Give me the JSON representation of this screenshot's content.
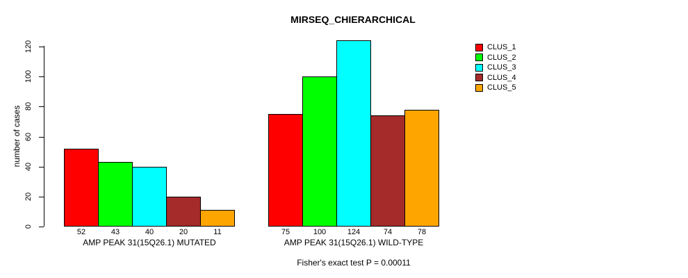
{
  "chart_data": {
    "type": "bar",
    "title": "MIRSEQ_CHIERARCHICAL",
    "ylabel": "number of cases",
    "ylim": [
      0,
      120
    ],
    "yticks": [
      0,
      20,
      40,
      60,
      80,
      100,
      120
    ],
    "grid": false,
    "legend_position": "right",
    "categories": [
      "AMP PEAK 31(15Q26.1) MUTATED",
      "AMP PEAK 31(15Q26.1) WILD-TYPE"
    ],
    "series": [
      {
        "name": "CLUS_1",
        "color": "#FF0000",
        "values": [
          52,
          75
        ]
      },
      {
        "name": "CLUS_2",
        "color": "#00FF00",
        "values": [
          43,
          100
        ]
      },
      {
        "name": "CLUS_3",
        "color": "#00FFFF",
        "values": [
          40,
          124
        ]
      },
      {
        "name": "CLUS_4",
        "color": "#A52A2A",
        "values": [
          20,
          74
        ]
      },
      {
        "name": "CLUS_5",
        "color": "#FFA500",
        "values": [
          11,
          78
        ]
      }
    ],
    "bar_value_labels": [
      [
        52,
        43,
        40,
        20,
        11
      ],
      [
        75,
        100,
        124,
        74,
        78
      ]
    ],
    "footnote": "Fisher's exact test P = 0.00011",
    "colors": {
      "background": "#FFFFFF",
      "axis": "#000000",
      "bar_border": "#000000"
    }
  }
}
